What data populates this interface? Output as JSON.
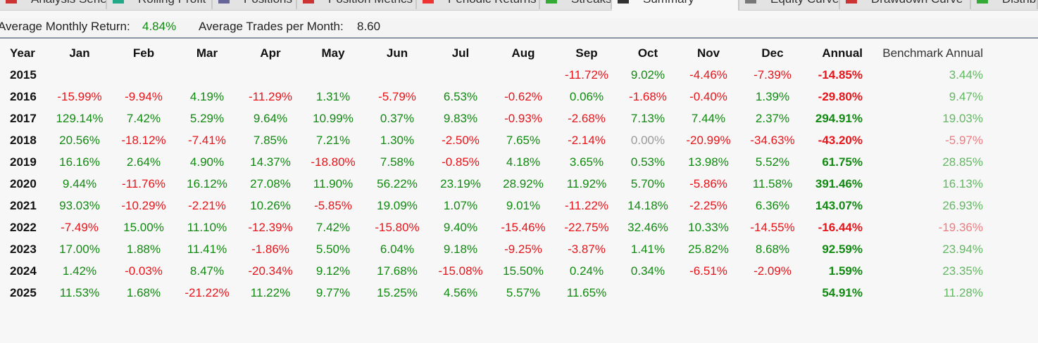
{
  "tabs": [
    {
      "label": "Analysis Series",
      "active": false
    },
    {
      "label": "Rolling Profit",
      "active": false
    },
    {
      "label": "Positions",
      "active": false
    },
    {
      "label": "Position Metrics",
      "active": false
    },
    {
      "label": "Periodic Returns",
      "active": false
    },
    {
      "label": "Streaks",
      "active": false
    },
    {
      "label": "Summary",
      "active": true
    },
    {
      "label": "Equity Curve",
      "active": false
    },
    {
      "label": "Drawdown Curve",
      "active": false
    },
    {
      "label": "Distribution",
      "active": false
    }
  ],
  "stats": {
    "avg_monthly_return_label": "Average Monthly Return:",
    "avg_monthly_return": "4.84%",
    "avg_trades_label": "Average Trades per Month:",
    "avg_trades": "8.60"
  },
  "colors": {
    "positive": "#118a11",
    "negative": "#e8141a",
    "zero": "#999999",
    "bench_positive": "#62b862",
    "bench_negative": "#f07a80"
  },
  "table": {
    "headers": [
      "Year",
      "Jan",
      "Feb",
      "Mar",
      "Apr",
      "May",
      "Jun",
      "Jul",
      "Aug",
      "Sep",
      "Oct",
      "Nov",
      "Dec",
      "Annual",
      "Benchmark Annual"
    ],
    "rows": [
      {
        "year": "2015",
        "months": [
          "",
          "",
          "",
          "",
          "",
          "",
          "",
          "",
          "-11.72%",
          "9.02%",
          "-4.46%",
          "-7.39%"
        ],
        "annual": "-14.85%",
        "benchmark": "3.44%"
      },
      {
        "year": "2016",
        "months": [
          "-15.99%",
          "-9.94%",
          "4.19%",
          "-11.29%",
          "1.31%",
          "-5.79%",
          "6.53%",
          "-0.62%",
          "0.06%",
          "-1.68%",
          "-0.40%",
          "1.39%"
        ],
        "annual": "-29.80%",
        "benchmark": "9.47%"
      },
      {
        "year": "2017",
        "months": [
          "129.14%",
          "7.42%",
          "5.29%",
          "9.64%",
          "10.99%",
          "0.37%",
          "9.83%",
          "-0.93%",
          "-2.68%",
          "7.13%",
          "7.44%",
          "2.37%"
        ],
        "annual": "294.91%",
        "benchmark": "19.03%"
      },
      {
        "year": "2018",
        "months": [
          "20.56%",
          "-18.12%",
          "-7.41%",
          "7.85%",
          "7.21%",
          "1.30%",
          "-2.50%",
          "7.65%",
          "-2.14%",
          "0.00%",
          "-20.99%",
          "-34.63%"
        ],
        "annual": "-43.20%",
        "benchmark": "-5.97%"
      },
      {
        "year": "2019",
        "months": [
          "16.16%",
          "2.64%",
          "4.90%",
          "14.37%",
          "-18.80%",
          "7.58%",
          "-0.85%",
          "4.18%",
          "3.65%",
          "0.53%",
          "13.98%",
          "5.52%"
        ],
        "annual": "61.75%",
        "benchmark": "28.85%"
      },
      {
        "year": "2020",
        "months": [
          "9.44%",
          "-11.76%",
          "16.12%",
          "27.08%",
          "11.90%",
          "56.22%",
          "23.19%",
          "28.92%",
          "11.92%",
          "5.70%",
          "-5.86%",
          "11.58%"
        ],
        "annual": "391.46%",
        "benchmark": "16.13%"
      },
      {
        "year": "2021",
        "months": [
          "93.03%",
          "-10.29%",
          "-2.21%",
          "10.26%",
          "-5.85%",
          "19.09%",
          "1.07%",
          "9.01%",
          "-11.22%",
          "14.18%",
          "-2.25%",
          "6.36%"
        ],
        "annual": "143.07%",
        "benchmark": "26.93%"
      },
      {
        "year": "2022",
        "months": [
          "-7.49%",
          "15.00%",
          "11.10%",
          "-12.39%",
          "7.42%",
          "-15.80%",
          "9.40%",
          "-15.46%",
          "-22.75%",
          "32.46%",
          "10.33%",
          "-14.55%"
        ],
        "annual": "-16.44%",
        "benchmark": "-19.36%"
      },
      {
        "year": "2023",
        "months": [
          "17.00%",
          "1.88%",
          "11.41%",
          "-1.86%",
          "5.50%",
          "6.04%",
          "9.18%",
          "-9.25%",
          "-3.87%",
          "1.41%",
          "25.82%",
          "8.68%"
        ],
        "annual": "92.59%",
        "benchmark": "23.94%"
      },
      {
        "year": "2024",
        "months": [
          "1.42%",
          "-0.03%",
          "8.47%",
          "-20.34%",
          "9.12%",
          "17.68%",
          "-15.08%",
          "15.50%",
          "0.24%",
          "0.34%",
          "-6.51%",
          "-2.09%"
        ],
        "annual": "1.59%",
        "benchmark": "23.35%"
      },
      {
        "year": "2025",
        "months": [
          "11.53%",
          "1.68%",
          "-21.22%",
          "11.22%",
          "9.77%",
          "15.25%",
          "4.56%",
          "5.57%",
          "11.65%",
          "",
          "",
          ""
        ],
        "annual": "54.91%",
        "benchmark": "11.28%"
      }
    ]
  }
}
